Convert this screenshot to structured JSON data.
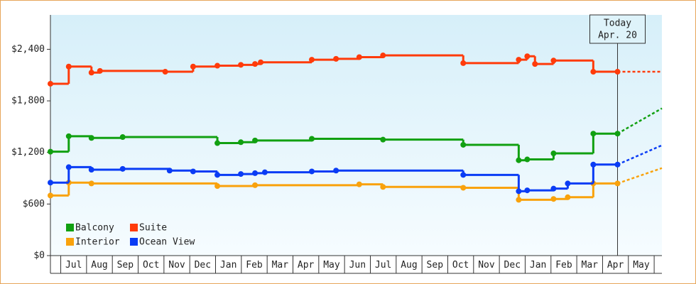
{
  "chart_data": {
    "type": "step",
    "xlim": [
      0.6,
      24.3
    ],
    "ylim": [
      0,
      2800
    ],
    "xticks": [
      {
        "value": 1.5,
        "label": "Jul"
      },
      {
        "value": 2.5,
        "label": "Aug"
      },
      {
        "value": 3.5,
        "label": "Sep"
      },
      {
        "value": 4.5,
        "label": "Oct"
      },
      {
        "value": 5.5,
        "label": "Nov"
      },
      {
        "value": 6.5,
        "label": "Dec"
      },
      {
        "value": 7.5,
        "label": "Jan"
      },
      {
        "value": 8.5,
        "label": "Feb"
      },
      {
        "value": 9.5,
        "label": "Mar"
      },
      {
        "value": 10.5,
        "label": "Apr"
      },
      {
        "value": 11.5,
        "label": "May"
      },
      {
        "value": 12.5,
        "label": "Jun"
      },
      {
        "value": 13.5,
        "label": "Jul"
      },
      {
        "value": 14.5,
        "label": "Aug"
      },
      {
        "value": 15.5,
        "label": "Sep"
      },
      {
        "value": 16.5,
        "label": "Oct"
      },
      {
        "value": 17.5,
        "label": "Nov"
      },
      {
        "value": 18.5,
        "label": "Dec"
      },
      {
        "value": 19.5,
        "label": "Jan"
      },
      {
        "value": 20.5,
        "label": "Feb"
      },
      {
        "value": 21.5,
        "label": "Mar"
      },
      {
        "value": 22.5,
        "label": "Apr"
      },
      {
        "value": 23.5,
        "label": "May"
      }
    ],
    "yticks": [
      {
        "value": 0,
        "label": "$0"
      },
      {
        "value": 600,
        "label": "$600"
      },
      {
        "value": 1200,
        "label": "$1,200"
      },
      {
        "value": 1800,
        "label": "$1,800"
      },
      {
        "value": 2400,
        "label": "$2,400"
      }
    ],
    "today_x": 22.58,
    "today_label": "Today",
    "today_date": "Apr. 20",
    "legend": "bottom-left",
    "series": [
      {
        "name": "Balcony",
        "color": "#11a011",
        "x": [
          0.6,
          1.31,
          2.19,
          3.4,
          7.07,
          7.98,
          8.53,
          10.73,
          13.49,
          16.6,
          18.75,
          19.08,
          20.1,
          21.64,
          22.58
        ],
        "values": [
          1209,
          1389,
          1369,
          1379,
          1309,
          1319,
          1339,
          1359,
          1349,
          1289,
          1109,
          1119,
          1189,
          1419,
          1419
        ],
        "forecast": 1713
      },
      {
        "name": "Suite",
        "color": "#ff3b0a",
        "x": [
          0.6,
          1.31,
          2.19,
          2.52,
          5.05,
          6.13,
          7.07,
          7.98,
          8.53,
          8.75,
          10.73,
          11.67,
          12.57,
          13.49,
          16.6,
          18.75,
          19.08,
          19.38,
          20.1,
          21.64,
          22.58
        ],
        "values": [
          1999,
          2199,
          2129,
          2149,
          2139,
          2199,
          2209,
          2219,
          2229,
          2249,
          2279,
          2289,
          2309,
          2329,
          2239,
          2279,
          2319,
          2229,
          2269,
          2139,
          2139
        ],
        "forecast": 2139
      },
      {
        "name": "Interior",
        "color": "#f9a20c",
        "x": [
          0.6,
          1.31,
          2.19,
          7.07,
          8.53,
          12.57,
          13.49,
          16.6,
          18.75,
          20.1,
          20.65,
          21.64,
          22.58
        ],
        "values": [
          699,
          849,
          839,
          809,
          819,
          829,
          799,
          789,
          649,
          659,
          679,
          839,
          839
        ],
        "forecast": 1018
      },
      {
        "name": "Ocean View",
        "color": "#0a3cf5",
        "x": [
          0.6,
          1.31,
          2.19,
          3.4,
          5.22,
          6.13,
          7.07,
          7.98,
          8.53,
          8.91,
          10.73,
          11.67,
          16.6,
          18.75,
          19.08,
          20.1,
          20.65,
          21.64,
          22.58
        ],
        "values": [
          849,
          1029,
          999,
          1009,
          989,
          979,
          939,
          949,
          959,
          969,
          979,
          989,
          939,
          749,
          759,
          779,
          839,
          1059,
          1059
        ],
        "forecast": 1283
      }
    ]
  }
}
